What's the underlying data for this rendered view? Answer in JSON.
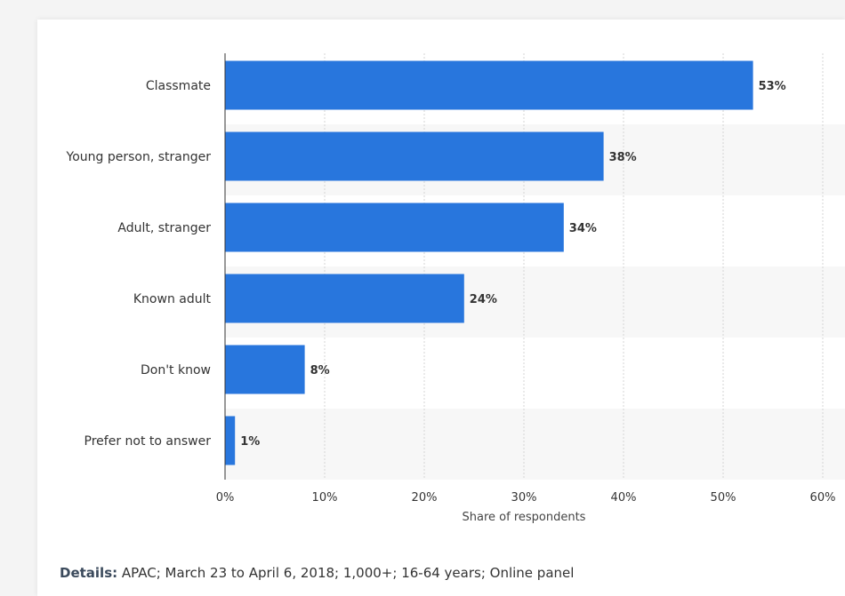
{
  "chart_data": {
    "type": "bar",
    "orientation": "horizontal",
    "categories": [
      "Classmate",
      "Young person, stranger",
      "Adult, stranger",
      "Known adult",
      "Don't know",
      "Prefer not to answer"
    ],
    "values": [
      53,
      38,
      34,
      24,
      8,
      1
    ],
    "value_labels": [
      "53%",
      "38%",
      "34%",
      "24%",
      "8%",
      "1%"
    ],
    "xlabel": "Share of respondents",
    "xlim": [
      0,
      60
    ],
    "xticks": [
      "0%",
      "10%",
      "20%",
      "30%",
      "40%",
      "50%",
      "60%"
    ],
    "grid": true,
    "bar_color": "#2876dd"
  },
  "details": {
    "label": "Details:",
    "text": "APAC; March 23 to April 6, 2018; 1,000+; 16-64 years; Online panel"
  }
}
